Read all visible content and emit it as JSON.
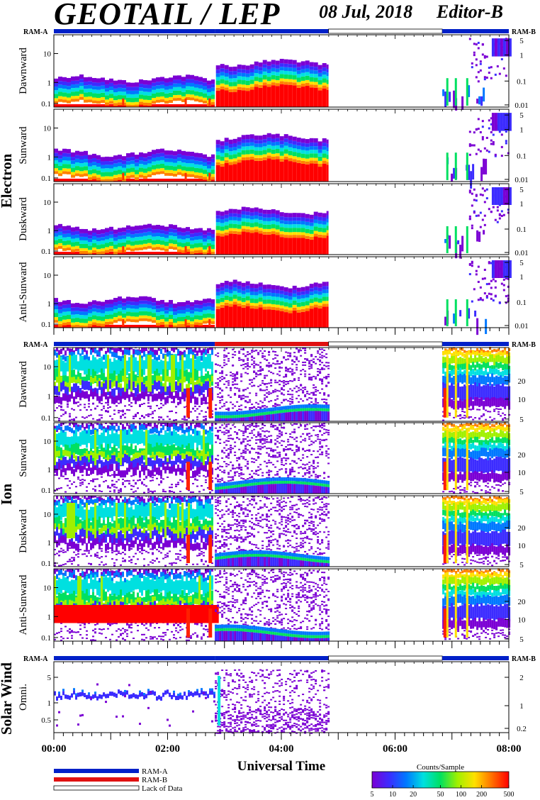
{
  "header": {
    "title": "GEOTAIL / LEP",
    "date": "08 Jul, 2018",
    "editor": "Editor-B"
  },
  "chart_data": {
    "type": "heatmap",
    "x_axis": {
      "title": "Universal Time",
      "ticks": [
        "00:00",
        "02:00",
        "04:00",
        "06:00",
        "08:00"
      ],
      "range_hours": [
        0,
        8
      ]
    },
    "mode_bar": {
      "left_label": "RAM-A",
      "right_label": "RAM-B",
      "segments": [
        {
          "from": 0.0,
          "to": 2.83,
          "mode": "ram_a"
        },
        {
          "from": 2.83,
          "to": 4.83,
          "mode": "ram_a"
        },
        {
          "from": 4.83,
          "to": 6.83,
          "mode": "gap"
        },
        {
          "from": 6.83,
          "to": 8.0,
          "mode": "ram_a"
        }
      ],
      "ion_segments": [
        {
          "from": 0.0,
          "to": 2.83,
          "mode": "ram_a"
        },
        {
          "from": 2.83,
          "to": 4.83,
          "mode": "ram_b"
        },
        {
          "from": 4.83,
          "to": 6.83,
          "mode": "gap"
        },
        {
          "from": 6.83,
          "to": 8.0,
          "mode": "ram_a"
        }
      ]
    },
    "groups": [
      {
        "name": "Electron",
        "panels": [
          {
            "label": "Dawnward",
            "left_ticks": [
              "10",
              "1",
              "0.1"
            ],
            "right_ticks": [
              "5",
              "1",
              "0.1",
              "0.01"
            ]
          },
          {
            "label": "Sunward",
            "left_ticks": [
              "10",
              "1",
              "0.1"
            ],
            "right_ticks": [
              "5",
              "1",
              "0.1",
              "0.01"
            ]
          },
          {
            "label": "Duskward",
            "left_ticks": [
              "10",
              "1",
              "0.1"
            ],
            "right_ticks": [
              "5",
              "1",
              "0.1",
              "0.01"
            ]
          },
          {
            "label": "Anti-Sunward",
            "left_ticks": [
              "10",
              "1",
              "0.1"
            ],
            "right_ticks": [
              "5",
              "1",
              "0.1",
              "0.01"
            ]
          }
        ]
      },
      {
        "name": "Ion",
        "panels": [
          {
            "label": "Dawnward",
            "left_ticks": [
              "10",
              "1",
              "0.1"
            ],
            "right_ticks": [
              "20",
              "10",
              "5"
            ]
          },
          {
            "label": "Sunward",
            "left_ticks": [
              "10",
              "1",
              "0.1"
            ],
            "right_ticks": [
              "20",
              "10",
              "5"
            ]
          },
          {
            "label": "Duskward",
            "left_ticks": [
              "10",
              "1",
              "0.1"
            ],
            "right_ticks": [
              "20",
              "10",
              "5"
            ]
          },
          {
            "label": "Anti-Sunward",
            "left_ticks": [
              "10",
              "1",
              "0.1"
            ],
            "right_ticks": [
              "20",
              "10",
              "5"
            ]
          }
        ]
      },
      {
        "name": "Solar Wind",
        "panels": [
          {
            "label": "Omni.",
            "left_ticks": [
              "5",
              "1",
              "0.5"
            ],
            "right_ticks": [
              "2",
              "1",
              "0.2"
            ]
          }
        ]
      }
    ],
    "legend": [
      {
        "label": "RAM-A",
        "color": "#0020c8"
      },
      {
        "label": "RAM-B",
        "color": "#e01010"
      },
      {
        "label": "Lack of Data",
        "color": "#ffffff"
      }
    ],
    "colorbar": {
      "title": "Counts/Sample",
      "ticks": [
        "5",
        "10",
        "20",
        "50",
        "100",
        "200",
        "500"
      ],
      "scale": "log",
      "range": [
        5,
        500
      ],
      "colors": [
        "#7b00d4",
        "#3c2cff",
        "#0078ff",
        "#00e0e0",
        "#00e060",
        "#a0f000",
        "#ffe000",
        "#ff7000",
        "#ff0000"
      ]
    }
  }
}
